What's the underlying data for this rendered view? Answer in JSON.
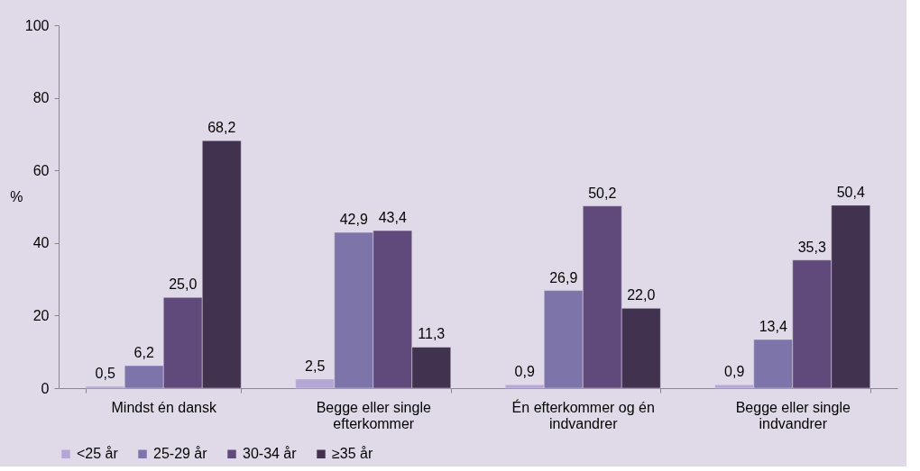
{
  "chart_data": {
    "type": "bar",
    "ylabel": "%",
    "categories": [
      "Mindst én dansk",
      "Begge eller single efterkommer",
      "Én efterkommer og én indvandrer",
      "Begge eller single indvandrer"
    ],
    "series": [
      {
        "name": "<25 år",
        "color": "#b6a6d6",
        "values": [
          0.5,
          2.5,
          0.9,
          0.9
        ],
        "value_labels": [
          "0,5",
          "2,5",
          "0,9",
          "0,9"
        ]
      },
      {
        "name": "25-29 år",
        "color": "#7d74aa",
        "values": [
          6.2,
          42.9,
          26.9,
          13.4
        ],
        "value_labels": [
          "6,2",
          "42,9",
          "26,9",
          "13,4"
        ]
      },
      {
        "name": "30-34 år",
        "color": "#5f4a7b",
        "values": [
          25.0,
          43.4,
          50.2,
          35.3
        ],
        "value_labels": [
          "25,0",
          "43,4",
          "50,2",
          "35,3"
        ]
      },
      {
        "name": "≥35 år",
        "color": "#41324f",
        "values": [
          68.2,
          11.3,
          22.0,
          50.4
        ],
        "value_labels": [
          "68,2",
          "11,3",
          "22,0",
          "50,4"
        ]
      }
    ],
    "ylim": [
      0,
      100
    ],
    "yticks": [
      0,
      20,
      40,
      60,
      80,
      100
    ],
    "grid": false,
    "legend": "bottom"
  }
}
